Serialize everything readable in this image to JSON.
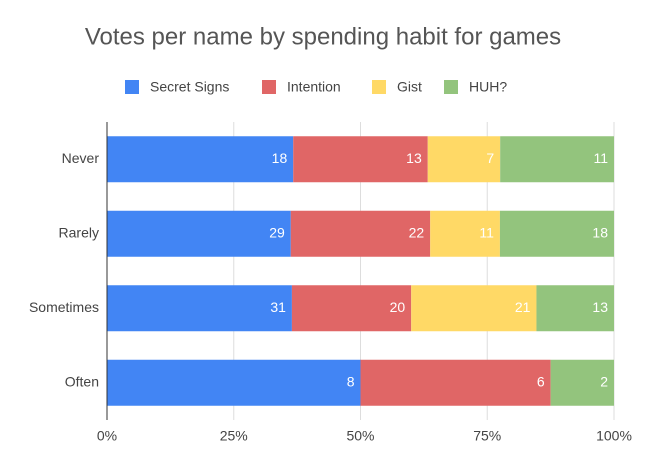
{
  "chart_data": {
    "type": "bar",
    "orientation": "horizontal",
    "stacking": "percent",
    "title": "Votes per name by spending habit for games",
    "categories": [
      "Never",
      "Rarely",
      "Sometimes",
      "Often"
    ],
    "series": [
      {
        "name": "Secret Signs",
        "color": "#4285f4",
        "values": [
          18,
          29,
          31,
          8
        ]
      },
      {
        "name": "Intention",
        "color": "#e06666",
        "values": [
          13,
          22,
          20,
          6
        ]
      },
      {
        "name": "Gist",
        "color": "#ffd966",
        "values": [
          7,
          11,
          21,
          0
        ]
      },
      {
        "name": "HUH?",
        "color": "#93c47d",
        "values": [
          11,
          18,
          13,
          2
        ]
      }
    ],
    "xlim": [
      0,
      100
    ],
    "xticks": [
      {
        "value": 0,
        "label": "0%"
      },
      {
        "value": 25,
        "label": "25%"
      },
      {
        "value": 50,
        "label": "50%"
      },
      {
        "value": 75,
        "label": "75%"
      },
      {
        "value": 100,
        "label": "100%"
      }
    ],
    "grid": true,
    "legend": "top"
  }
}
